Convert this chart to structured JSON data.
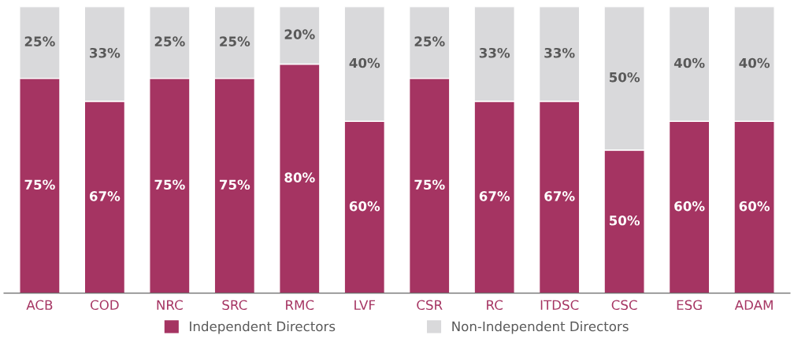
{
  "chart_data": {
    "type": "bar",
    "stacked": true,
    "categories": [
      "ACB",
      "COD",
      "NRC",
      "SRC",
      "RMC",
      "LVF",
      "CSR",
      "RC",
      "ITDSC",
      "CSC",
      "ESG",
      "ADAM"
    ],
    "series": [
      {
        "name": "Independent Directors",
        "color": "#a53462",
        "values": [
          75,
          67,
          75,
          75,
          80,
          60,
          75,
          67,
          67,
          50,
          60,
          60
        ],
        "value_labels": [
          "75%",
          "67%",
          "75%",
          "75%",
          "80%",
          "60%",
          "75%",
          "67%",
          "67%",
          "50%",
          "60%",
          "60%"
        ]
      },
      {
        "name": "Non-Independent Directors",
        "color": "#d9d9db",
        "values": [
          25,
          33,
          25,
          25,
          20,
          40,
          25,
          33,
          33,
          50,
          40,
          40
        ],
        "value_labels": [
          "25%",
          "33%",
          "25%",
          "25%",
          "20%",
          "40%",
          "25%",
          "33%",
          "33%",
          "50%",
          "40%",
          "40%"
        ]
      }
    ],
    "ylim": [
      0,
      100
    ],
    "tick_labels": "x",
    "grid": false,
    "legend": "bottom"
  }
}
